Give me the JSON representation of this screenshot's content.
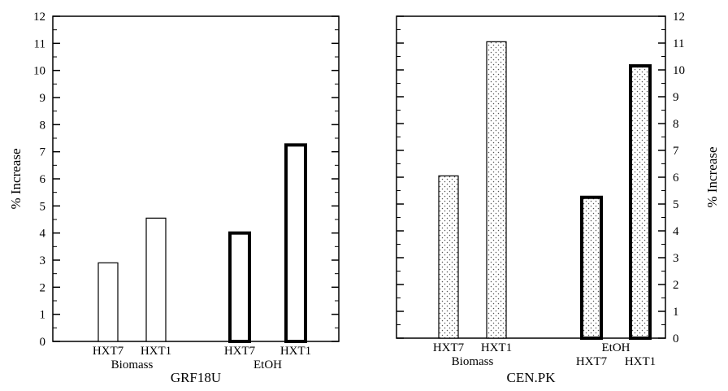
{
  "chart_data": [
    {
      "type": "bar",
      "panel": "left",
      "xlabel": "GRF18U",
      "ylabel": "% Increase",
      "ylim": [
        0,
        12
      ],
      "yticks": [
        0,
        1,
        2,
        3,
        4,
        5,
        6,
        7,
        8,
        9,
        10,
        11,
        12
      ],
      "y_axis_side": "left",
      "groups": [
        {
          "label": "Biomass",
          "label_position": "below",
          "bars": [
            {
              "category": "HXT7",
              "value": 2.9,
              "style": "plain",
              "edge": "thin"
            },
            {
              "category": "HXT1",
              "value": 4.55,
              "style": "plain",
              "edge": "thin"
            }
          ]
        },
        {
          "label": "EtOH",
          "label_position": "below",
          "bars": [
            {
              "category": "HXT7",
              "value": 4.0,
              "style": "plain",
              "edge": "thick"
            },
            {
              "category": "HXT1",
              "value": 7.25,
              "style": "plain",
              "edge": "thick"
            }
          ]
        }
      ]
    },
    {
      "type": "bar",
      "panel": "right",
      "xlabel": "CEN.PK",
      "ylabel": "% Increase",
      "ylim": [
        0,
        12
      ],
      "yticks": [
        0,
        1,
        2,
        3,
        4,
        5,
        6,
        7,
        8,
        9,
        10,
        11,
        12
      ],
      "y_axis_side": "right",
      "groups": [
        {
          "label": "Biomass",
          "label_position": "below",
          "bars": [
            {
              "category": "HXT7",
              "value": 6.05,
              "style": "dotted",
              "edge": "thin"
            },
            {
              "category": "HXT1",
              "value": 11.05,
              "style": "dotted",
              "edge": "thin"
            }
          ]
        },
        {
          "label": "EtOH",
          "label_position": "above",
          "bars": [
            {
              "category": "HXT7",
              "value": 5.25,
              "style": "dotted",
              "edge": "thick"
            },
            {
              "category": "HXT1",
              "value": 10.15,
              "style": "dotted",
              "edge": "thick"
            }
          ]
        }
      ]
    }
  ]
}
